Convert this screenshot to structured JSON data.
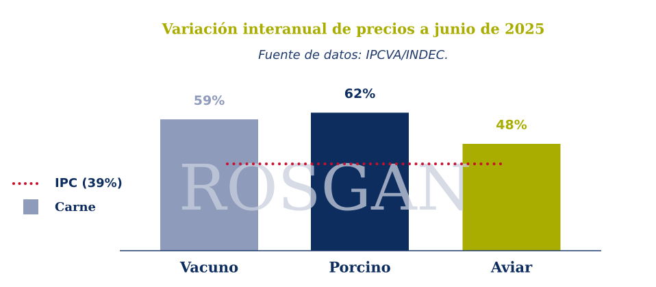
{
  "chart_data": {
    "type": "bar",
    "title": "Variación interanual de precios a junio de 2025",
    "subtitle": "Fuente de datos: IPCVA/INDEC.",
    "watermark": "ROSGAN",
    "categories": [
      "Vacuno",
      "Porcino",
      "Aviar"
    ],
    "series": [
      {
        "name": "Carne",
        "color": "#8f9bbb",
        "values": [
          59,
          62,
          48
        ],
        "value_labels": [
          "59%",
          "62%",
          "48%"
        ],
        "colors": [
          "#8f9bbb",
          "#0d2d5e",
          "#a9ad00"
        ]
      }
    ],
    "reference_line": {
      "value": 39,
      "label": "IPC (39%)",
      "color": "#c8102e"
    }
  }
}
